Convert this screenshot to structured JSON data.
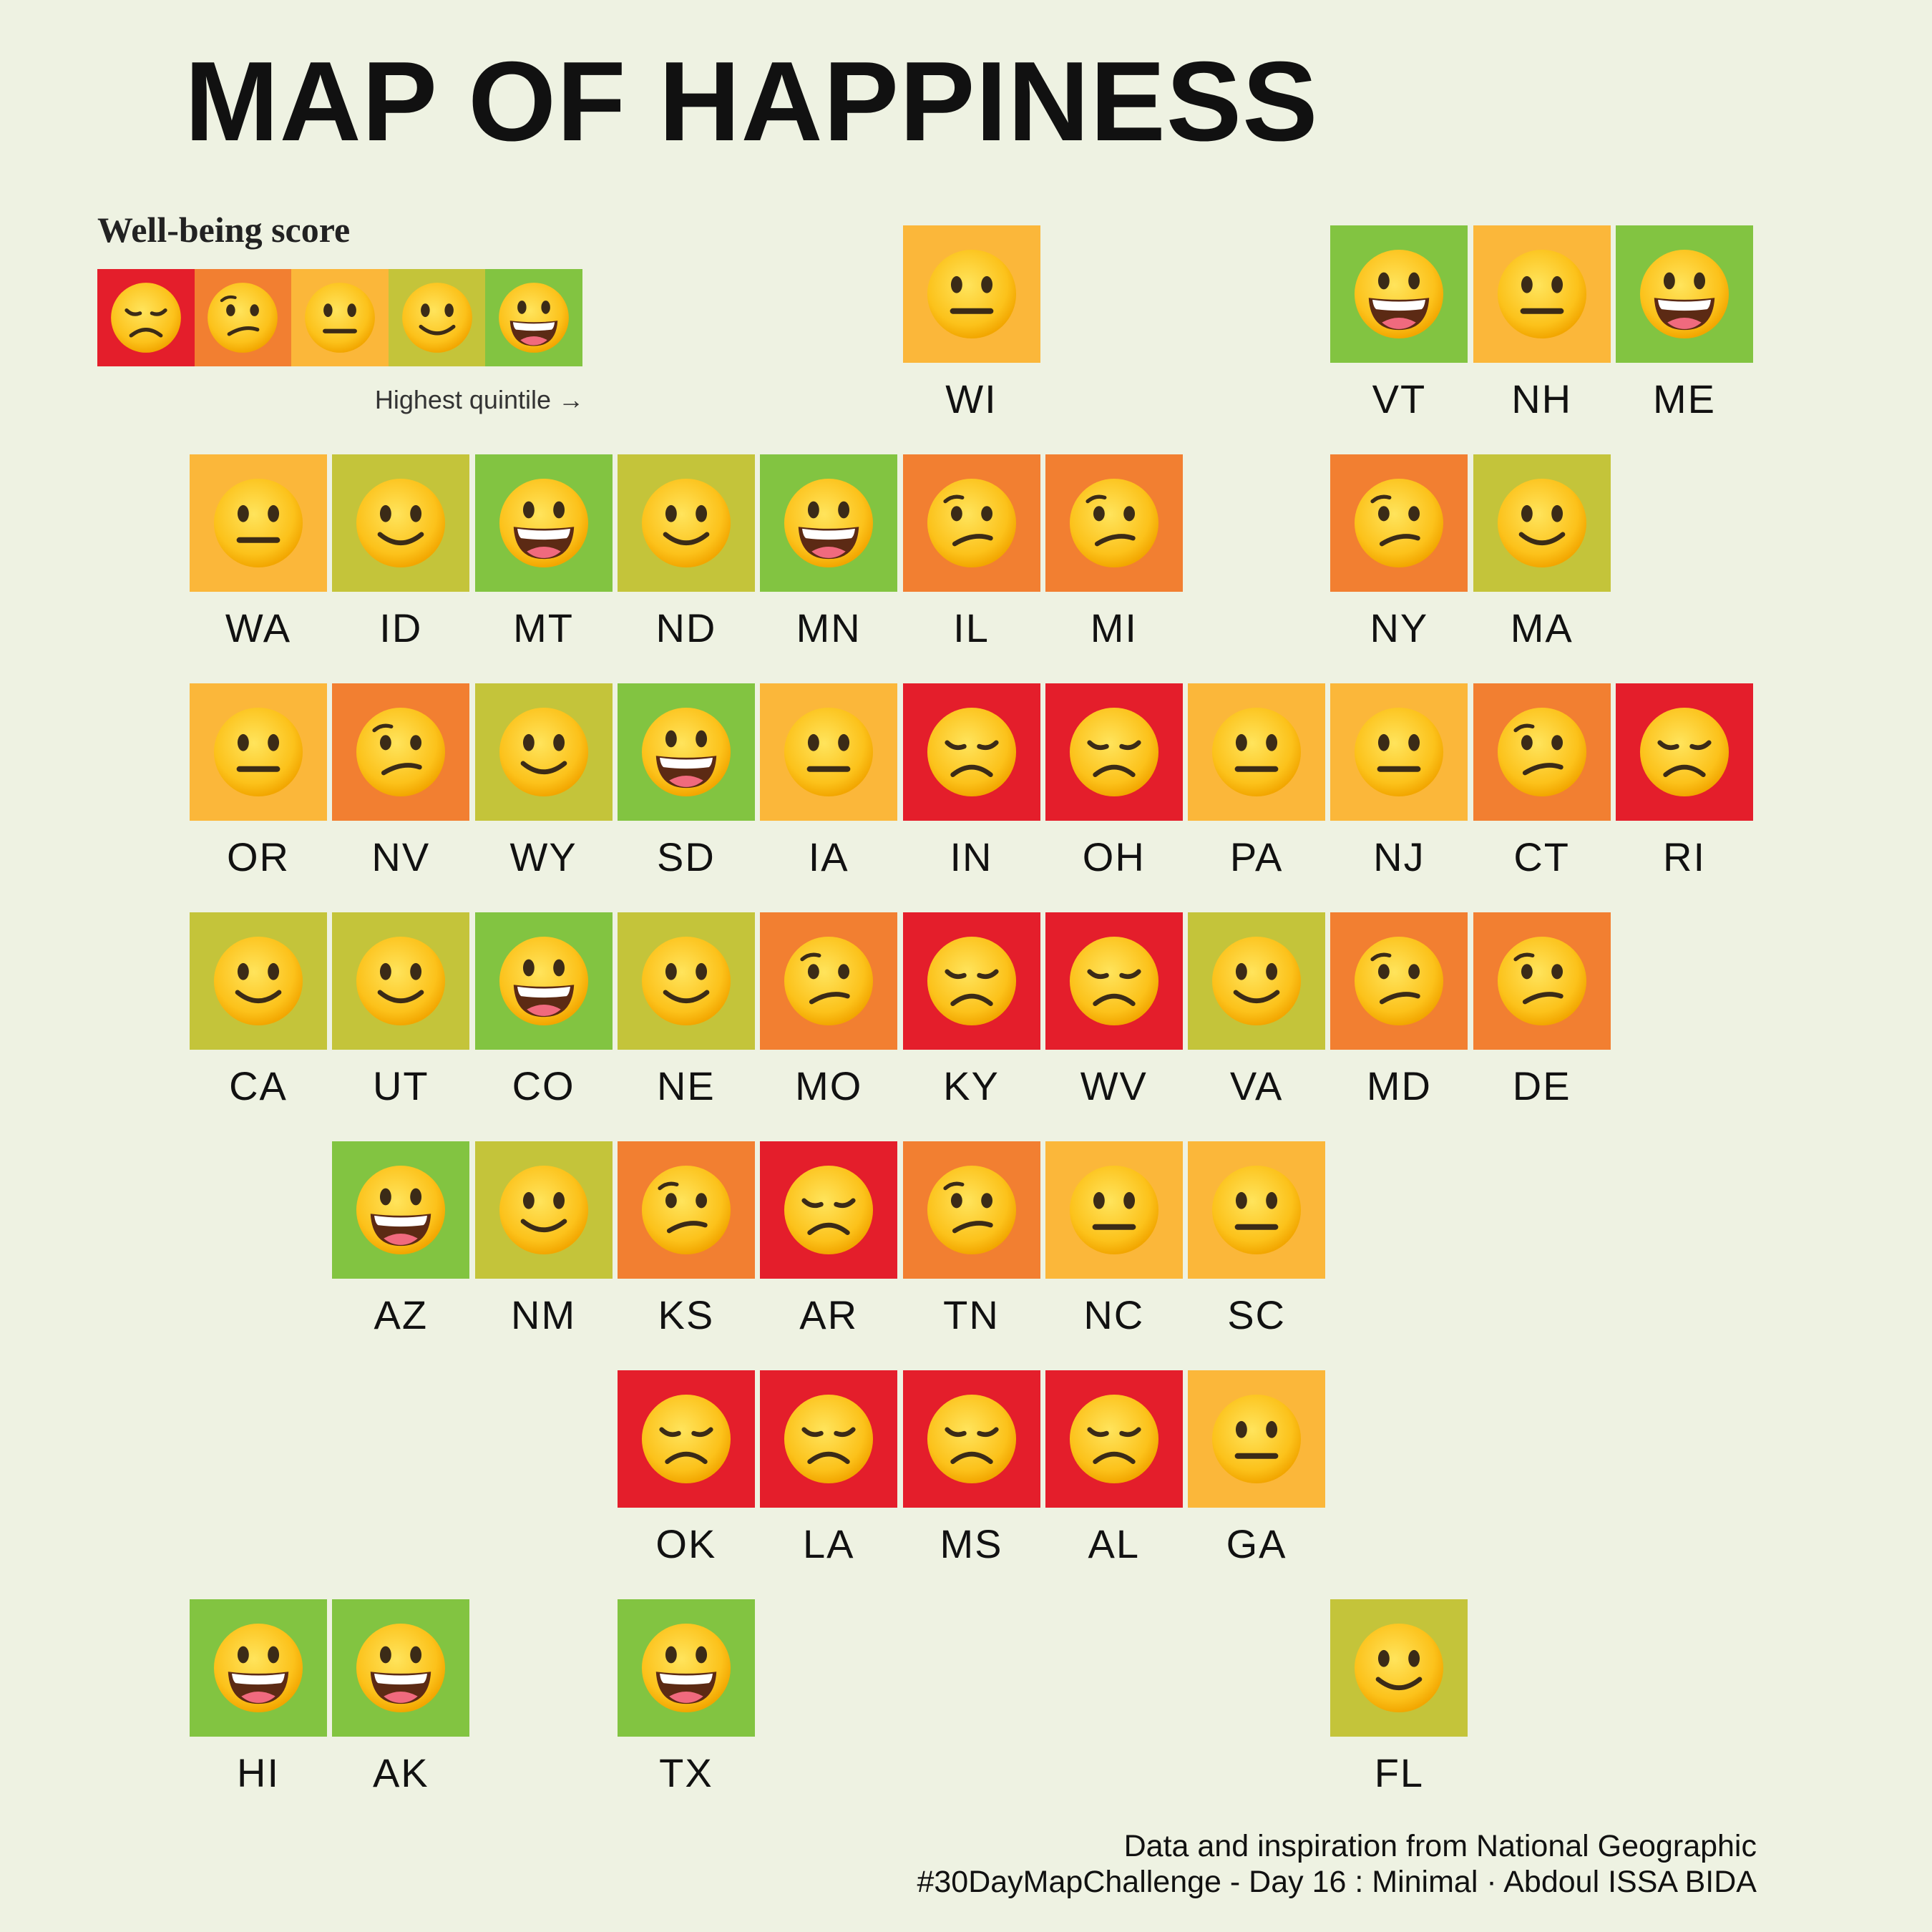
{
  "title": "MAP OF HAPPINESS",
  "legend": {
    "title": "Well-being score",
    "note": "Highest quintile →",
    "quintiles": [
      {
        "level": 1,
        "color": "#e41e2b",
        "face": "disappointed-face"
      },
      {
        "level": 2,
        "color": "#f27f31",
        "face": "confused-face"
      },
      {
        "level": 3,
        "color": "#fbb73a",
        "face": "neutral-face"
      },
      {
        "level": 4,
        "color": "#c4c43a",
        "face": "slightly-smiling-face"
      },
      {
        "level": 5,
        "color": "#82c441",
        "face": "grinning-face"
      }
    ]
  },
  "states": [
    {
      "code": "WI",
      "quintile": 3
    },
    {
      "code": "VT",
      "quintile": 5
    },
    {
      "code": "NH",
      "quintile": 3
    },
    {
      "code": "ME",
      "quintile": 5
    },
    {
      "code": "WA",
      "quintile": 3
    },
    {
      "code": "ID",
      "quintile": 4
    },
    {
      "code": "MT",
      "quintile": 5
    },
    {
      "code": "ND",
      "quintile": 4
    },
    {
      "code": "MN",
      "quintile": 5
    },
    {
      "code": "IL",
      "quintile": 2
    },
    {
      "code": "MI",
      "quintile": 2
    },
    {
      "code": "NY",
      "quintile": 2
    },
    {
      "code": "MA",
      "quintile": 4
    },
    {
      "code": "OR",
      "quintile": 3
    },
    {
      "code": "NV",
      "quintile": 2
    },
    {
      "code": "WY",
      "quintile": 4
    },
    {
      "code": "SD",
      "quintile": 5
    },
    {
      "code": "IA",
      "quintile": 3
    },
    {
      "code": "IN",
      "quintile": 1
    },
    {
      "code": "OH",
      "quintile": 1
    },
    {
      "code": "PA",
      "quintile": 3
    },
    {
      "code": "NJ",
      "quintile": 3
    },
    {
      "code": "CT",
      "quintile": 2
    },
    {
      "code": "RI",
      "quintile": 1
    },
    {
      "code": "CA",
      "quintile": 4
    },
    {
      "code": "UT",
      "quintile": 4
    },
    {
      "code": "CO",
      "quintile": 5
    },
    {
      "code": "NE",
      "quintile": 4
    },
    {
      "code": "MO",
      "quintile": 2
    },
    {
      "code": "KY",
      "quintile": 1
    },
    {
      "code": "WV",
      "quintile": 1
    },
    {
      "code": "VA",
      "quintile": 4
    },
    {
      "code": "MD",
      "quintile": 2
    },
    {
      "code": "DE",
      "quintile": 2
    },
    {
      "code": "AZ",
      "quintile": 5
    },
    {
      "code": "NM",
      "quintile": 4
    },
    {
      "code": "KS",
      "quintile": 2
    },
    {
      "code": "AR",
      "quintile": 1
    },
    {
      "code": "TN",
      "quintile": 2
    },
    {
      "code": "NC",
      "quintile": 3
    },
    {
      "code": "SC",
      "quintile": 3
    },
    {
      "code": "OK",
      "quintile": 1
    },
    {
      "code": "LA",
      "quintile": 1
    },
    {
      "code": "MS",
      "quintile": 1
    },
    {
      "code": "AL",
      "quintile": 1
    },
    {
      "code": "GA",
      "quintile": 3
    },
    {
      "code": "HI",
      "quintile": 5
    },
    {
      "code": "AK",
      "quintile": 5
    },
    {
      "code": "TX",
      "quintile": 5
    },
    {
      "code": "FL",
      "quintile": 4
    }
  ],
  "credits": {
    "line1": "Data and inspiration from National Geographic",
    "line2": "#30DayMapChallenge - Day 16 : Minimal · Abdoul ISSA BIDA"
  }
}
